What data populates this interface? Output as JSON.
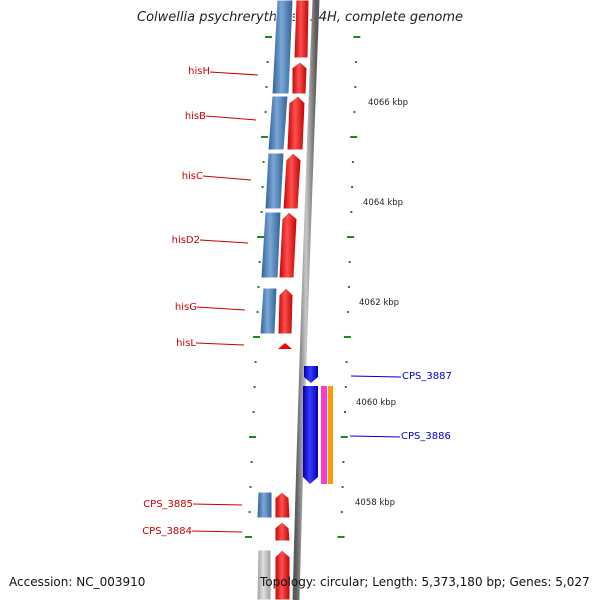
{
  "title": "Colwellia psychrerythraea 34H, complete genome",
  "footer": {
    "accession": "Accession: NC_003910",
    "topology": "Topology: circular; Length: 5,373,180 bp; Genes: 5,027"
  },
  "colors": {
    "backbone": "#808080",
    "left_strand_gene": "#4a7fb5",
    "right_strand_gene": "#ff0000",
    "cps_gene": "#2020e0",
    "label_left": "#cc0000",
    "label_right": "#0000cc",
    "tick": "#1a8a1a",
    "magenta_feature": "#ff3cc8",
    "orange_feature": "#ff9900"
  },
  "scale": {
    "unit": "kbp",
    "ticks": [
      "4066 kbp",
      "4064 kbp",
      "4062 kbp",
      "4060 kbp",
      "4058 kbp"
    ]
  },
  "genes_left": [
    {
      "label": "hisH"
    },
    {
      "label": "hisB"
    },
    {
      "label": "hisC"
    },
    {
      "label": "hisD2"
    },
    {
      "label": "hisG"
    },
    {
      "label": "hisL"
    },
    {
      "label": "CPS_3885"
    },
    {
      "label": "CPS_3884"
    }
  ],
  "genes_right": [
    {
      "label": "CPS_3887"
    },
    {
      "label": "CPS_3886"
    }
  ]
}
